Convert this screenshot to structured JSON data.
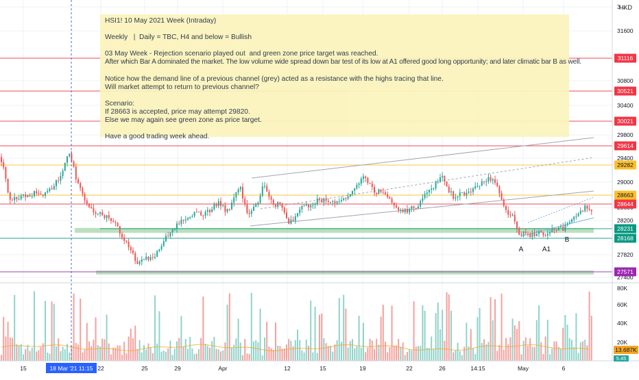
{
  "chart_data": {
    "type": "candlestick",
    "price_axis": {
      "currency": "HKD",
      "ticks": [
        "3…",
        "31600",
        "31200",
        "30800",
        "30400",
        "30000",
        "29800",
        "29400",
        "29000",
        "28600",
        "28200",
        "27820",
        "27400"
      ],
      "range": [
        27380,
        32050
      ]
    },
    "volume_axis": {
      "ticks": [
        "80K",
        "60K",
        "40K",
        "20K"
      ],
      "range": [
        0,
        88000
      ],
      "current_label": "13.687K",
      "secondary_label": "5.45"
    },
    "x_axis": {
      "ticks": [
        "15",
        "22",
        "25",
        "29",
        "Apr",
        "12",
        "15",
        "19",
        "22",
        "26",
        "14:15",
        "May",
        "6"
      ],
      "crosshair_label": "18 Mar '21  11:15"
    },
    "horizontal_levels": [
      {
        "label": "31116",
        "value": 31116,
        "color": "#f23645"
      },
      {
        "label": "30521",
        "value": 30521,
        "color": "#f23645"
      },
      {
        "label": "30021",
        "value": 30021,
        "color": "#f23645"
      },
      {
        "label": "29614",
        "value": 29614,
        "color": "#f23645"
      },
      {
        "label": "29282",
        "value": 29282,
        "color": "#fbc02d"
      },
      {
        "label": "28663",
        "value": 28663,
        "color": "#fbc02d"
      },
      {
        "label": "28644",
        "value": 28644,
        "color": "#f23645"
      },
      {
        "label": "28231",
        "value": 28231,
        "color": "#089981"
      },
      {
        "label": "28168",
        "value": 28168,
        "color": "#089981"
      },
      {
        "label": "27571",
        "value": 27571,
        "color": "#9c27b0"
      }
    ],
    "annotations": [
      "A",
      "A1",
      "B"
    ]
  },
  "note": {
    "lines": [
      "HSI1! 10 May 2021 Week (Intraday)",
      "",
      "Weekly   |  Daily = TBC, H4 and below = Bullish",
      "",
      "03 May Week - Rejection scenario played out  and green zone price target was reached.",
      "After which Bar A dominated the market. The low volume wide spread down bar test of its low at A1 offered good long opportunity; and later climatic bar B as well.",
      "",
      "Notice how the demand line of a previous channel (grey) acted as a resistance with the highs tracing that line.",
      "Will market attempt to return to previous channel?",
      "",
      "Scenario:",
      "If 28663 is accepted, price may attempt 29820.",
      "Else we may again see green zone as price target.",
      "",
      "Have a good trading week ahead."
    ]
  },
  "colors": {
    "up": "#26a69a",
    "down": "#ef5350",
    "vol_up": "#8fd3c9",
    "vol_down": "#f4a09c",
    "zone": "#a5d6a7",
    "grid": "#eef0f4",
    "channel": "#a0a4ad",
    "crosshair": "#3f6bd8"
  }
}
